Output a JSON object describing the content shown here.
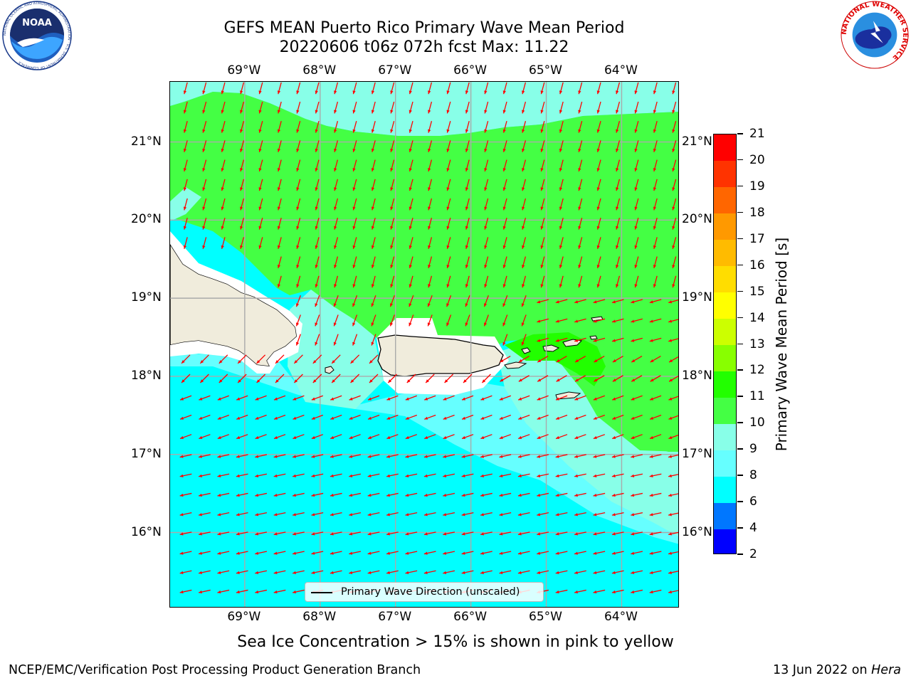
{
  "header": {
    "title_line1": "GEFS MEAN Puerto Rico Primary Wave Mean Period",
    "title_line2": "20220606 t06z 072h fcst   Max: 11.22"
  },
  "logos": {
    "noaa_text": "NOAA",
    "noaa_ring_text": "NATIONAL OCEANIC AND ATMOSPHERIC ADMINISTRATION · U.S. DEPARTMENT OF COMMERCE",
    "nws_ring_text": "NATIONAL WEATHER SERVICE"
  },
  "map": {
    "lon_labels": [
      "69°W",
      "68°W",
      "67°W",
      "66°W",
      "65°W",
      "64°W"
    ],
    "lat_labels": [
      "21°N",
      "20°N",
      "19°N",
      "18°N",
      "17°N",
      "16°N"
    ],
    "lon_values": [
      -69,
      -68,
      -67,
      -66,
      -65,
      -64
    ],
    "lat_values": [
      21,
      20,
      19,
      18,
      17,
      16
    ],
    "extent": {
      "lon_min": -69.99,
      "lon_max": -63.23,
      "lat_min": 15.03,
      "lat_max": 21.77
    },
    "legend_label": "Primary Wave Direction (unscaled)",
    "arrow_color": "#ff0000",
    "land_color": "#f0ecdc",
    "regions": [
      {
        "name": "period 10-11 s (north)",
        "color": "#44ff44"
      },
      {
        "name": "period 9-10 s",
        "color": "#88ffe8"
      },
      {
        "name": "period 8-9 s",
        "color": "#66ffff"
      },
      {
        "name": "period 6-8 s (south)",
        "color": "#00ffff"
      }
    ]
  },
  "colorbar": {
    "title": "Primary Wave Mean Period [s]",
    "labels": [
      "2",
      "4",
      "6",
      "8",
      "9",
      "10",
      "11",
      "12",
      "13",
      "14",
      "15",
      "16",
      "17",
      "18",
      "19",
      "20",
      "21"
    ],
    "colors": [
      "#0000ff",
      "#0077ff",
      "#00ffff",
      "#66ffff",
      "#88ffe8",
      "#44ff44",
      "#22ff00",
      "#88ff00",
      "#ccff00",
      "#ffff00",
      "#ffdd00",
      "#ffbb00",
      "#ff9900",
      "#ff6600",
      "#ff3300",
      "#ff0000"
    ]
  },
  "notes": {
    "sea_ice": "Sea Ice Concentration > 15% is shown in pink to yellow"
  },
  "footer": {
    "left": "NCEP/EMC/Verification Post Processing Product Generation Branch",
    "right_prefix": "13 Jun 2022 on ",
    "right_host": "Hera"
  }
}
